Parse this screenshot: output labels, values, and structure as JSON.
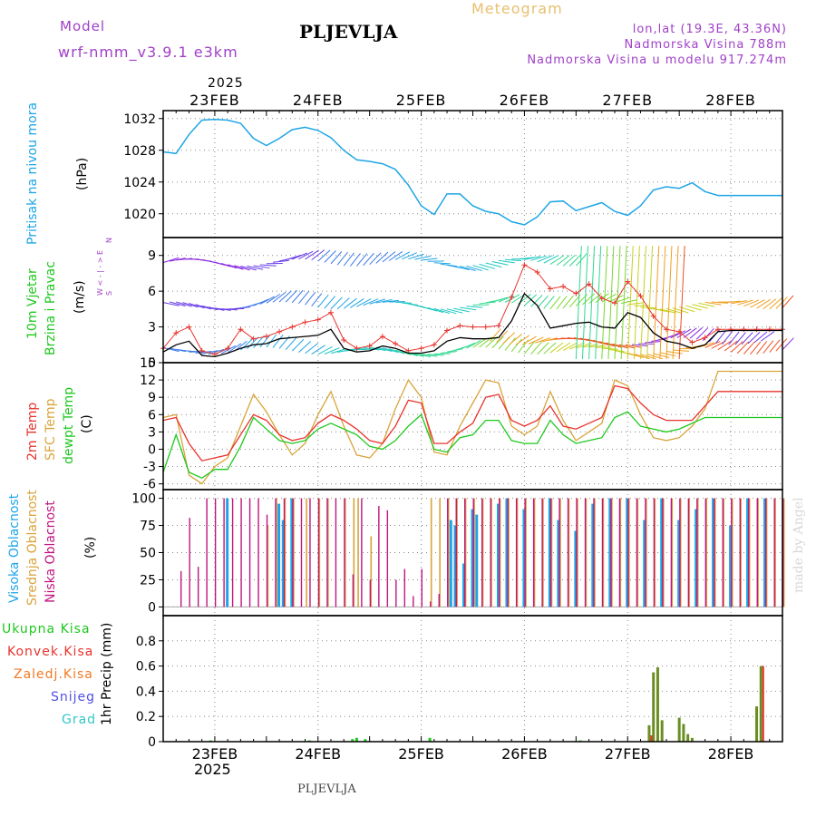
{
  "header": {
    "model_label": "Model",
    "model_name": "wrf-nmm_v3.9.1  e3km",
    "title": "PLJEVLJA",
    "meteogram_label": "Meteogram",
    "lonlat": "lon,lat (19.3E, 43.36N)",
    "altitude": "Nadmorska Visina 788m",
    "model_altitude": "Nadmorska Visina u modelu 917.274m",
    "year_top": "2025",
    "year_bottom": "2025",
    "bottom_label": "PLJEVLJA",
    "watermark": "made by Angel"
  },
  "colors": {
    "pressure": "#1ea5e6",
    "temp2m": "#e8332d",
    "sfc": "#d9a43a",
    "dewpt": "#1ec81e",
    "high_cloud": "#1ea5e6",
    "mid_cloud": "#d9a43a",
    "low_cloud": "#c0147f",
    "total": "#1ec81e",
    "conv": "#e8332d",
    "frozen": "#f07a26",
    "snow": "#5050e6",
    "grad": "#32c8c8",
    "wind_line": "#000000",
    "gust": "#e8332d",
    "title_purple": "#a040c8"
  },
  "chart_data": [
    {
      "panel": "pressure",
      "type": "line",
      "ylabel_title": "Pritisak na nivou mora",
      "ylabel_unit": "(hPa)",
      "ylim": [
        1017,
        1033
      ],
      "yticks": [
        "1020",
        "1024",
        "1028",
        "1032"
      ],
      "series": [
        {
          "name": "MSLP",
          "x": [
            0,
            3,
            6,
            9,
            12,
            15,
            18,
            21,
            24,
            27,
            30,
            33,
            36,
            39,
            42,
            45,
            48,
            51,
            54,
            57,
            60,
            63,
            66,
            69,
            72,
            75,
            78,
            81,
            84,
            87,
            90,
            93,
            96,
            99,
            102,
            105,
            108,
            111,
            114,
            117,
            120,
            123,
            126,
            129,
            132,
            135,
            138,
            141,
            144
          ],
          "values": [
            1027.8,
            1027.6,
            1030.0,
            1031.8,
            1031.9,
            1031.8,
            1031.4,
            1029.5,
            1028.6,
            1029.5,
            1030.6,
            1030.9,
            1030.5,
            1029.6,
            1028.0,
            1026.8,
            1026.6,
            1026.3,
            1025.6,
            1023.6,
            1021.0,
            1019.9,
            1022.5,
            1022.5,
            1021.0,
            1020.3,
            1020.0,
            1019.0,
            1018.6,
            1019.6,
            1021.5,
            1021.6,
            1020.4,
            1020.9,
            1021.4,
            1020.3,
            1019.8,
            1021.0,
            1023.0,
            1023.4,
            1023.2,
            1023.9,
            1022.8,
            1022.3,
            1022.3,
            1022.3,
            1022.3,
            1022.3,
            1022.3
          ]
        }
      ]
    },
    {
      "panel": "wind",
      "type": "line",
      "ylabel_title": "10m Vjetar",
      "ylabel_title2": "Brzina i Pravac",
      "ylabel_unit": "(m/s)",
      "legend_compass": [
        "N",
        "W  < - | - >  E",
        "S"
      ],
      "ylim": [
        0,
        10.5
      ],
      "yticks": [
        "0",
        "3",
        "6",
        "9"
      ],
      "series": [
        {
          "name": "speed",
          "x": [
            0,
            3,
            6,
            9,
            12,
            15,
            18,
            21,
            24,
            27,
            30,
            33,
            36,
            39,
            42,
            45,
            48,
            51,
            54,
            57,
            60,
            63,
            66,
            69,
            72,
            75,
            78,
            81,
            84,
            87,
            90,
            93,
            96,
            99,
            102,
            105,
            108,
            111,
            114,
            117,
            120,
            123,
            126,
            129,
            132,
            135,
            138,
            141,
            144
          ],
          "values": [
            0.9,
            1.5,
            1.8,
            0.6,
            0.5,
            0.8,
            1.2,
            1.5,
            1.6,
            2.0,
            2.1,
            2.2,
            2.3,
            2.8,
            1.2,
            0.9,
            1.0,
            1.4,
            1.2,
            0.8,
            0.8,
            1.0,
            1.8,
            2.1,
            2.0,
            2.0,
            2.1,
            3.5,
            5.8,
            4.8,
            2.9,
            3.1,
            3.3,
            3.4,
            3.0,
            2.9,
            4.2,
            3.8,
            2.5,
            1.8,
            1.6,
            1.2,
            1.5,
            2.6,
            2.7,
            2.7,
            2.7,
            2.7,
            2.7
          ]
        },
        {
          "name": "gust",
          "x": [
            0,
            3,
            6,
            9,
            12,
            15,
            18,
            21,
            24,
            27,
            30,
            33,
            36,
            39,
            42,
            45,
            48,
            51,
            54,
            57,
            60,
            63,
            66,
            69,
            72,
            75,
            78,
            81,
            84,
            87,
            90,
            93,
            96,
            99,
            102,
            105,
            108,
            111,
            114,
            117,
            120,
            123,
            126,
            129,
            132,
            135,
            138,
            141,
            144
          ],
          "values": [
            1.2,
            2.5,
            3.0,
            1.0,
            0.7,
            1.2,
            2.8,
            2.0,
            2.2,
            2.6,
            3.0,
            3.4,
            3.6,
            4.2,
            1.9,
            1.2,
            1.4,
            2.2,
            1.6,
            1.0,
            1.2,
            1.5,
            2.7,
            3.1,
            3.0,
            3.0,
            3.1,
            5.5,
            8.2,
            7.6,
            6.2,
            6.4,
            5.8,
            6.6,
            5.4,
            5.0,
            6.8,
            5.6,
            3.9,
            2.8,
            2.6,
            1.7,
            2.1,
            2.8,
            2.8,
            2.8,
            2.8,
            2.8,
            2.8
          ]
        }
      ]
    },
    {
      "panel": "temperature",
      "type": "line",
      "ylabel_title": "2m Temp",
      "ylabel_title2": "SFC Temp",
      "ylabel_title3": "dewpt Temp",
      "ylabel_unit": "(C)",
      "ylim": [
        -7,
        15
      ],
      "yticks": [
        "-6",
        "-3",
        "0",
        "3",
        "6",
        "9",
        "12",
        "15"
      ],
      "x": [
        0,
        3,
        6,
        9,
        12,
        15,
        18,
        21,
        24,
        27,
        30,
        33,
        36,
        39,
        42,
        45,
        48,
        51,
        54,
        57,
        60,
        63,
        66,
        69,
        72,
        75,
        78,
        81,
        84,
        87,
        90,
        93,
        96,
        99,
        102,
        105,
        108,
        111,
        114,
        117,
        120,
        123,
        126,
        129,
        132,
        135,
        138,
        141,
        144
      ],
      "series": [
        {
          "name": "2m",
          "values": [
            5.0,
            5.5,
            1.0,
            -2.0,
            -1.5,
            -1.0,
            2.5,
            6.0,
            5.0,
            2.5,
            1.5,
            2.0,
            4.5,
            6.0,
            5.0,
            3.5,
            1.5,
            1.0,
            4.0,
            8.5,
            8.0,
            1.0,
            1.0,
            3.0,
            4.5,
            9.0,
            9.5,
            5.0,
            4.0,
            5.0,
            7.5,
            4.0,
            3.5,
            4.5,
            5.5,
            11.0,
            10.5,
            8.0,
            6.0,
            5.0,
            5.0,
            5.0,
            7.5,
            10.0,
            10.0,
            10.0,
            10.0,
            10.0,
            10.0
          ]
        },
        {
          "name": "sfc",
          "values": [
            5.5,
            6.0,
            -4.5,
            -6.0,
            -3.0,
            -1.5,
            4.0,
            9.5,
            6.5,
            2.5,
            -1.0,
            1.0,
            6.0,
            10.0,
            4.0,
            -1.0,
            -1.5,
            1.0,
            7.0,
            12.0,
            9.0,
            -0.5,
            -1.0,
            4.0,
            8.0,
            12.0,
            11.5,
            4.0,
            2.5,
            4.0,
            10.0,
            5.0,
            1.5,
            3.0,
            4.5,
            12.0,
            11.0,
            6.0,
            2.0,
            1.5,
            2.0,
            4.0,
            7.0,
            13.5,
            13.5,
            13.5,
            13.5,
            13.5,
            13.5
          ]
        },
        {
          "name": "dewpt",
          "values": [
            -4.0,
            2.5,
            -4.0,
            -5.0,
            -3.5,
            -3.5,
            0.5,
            5.5,
            3.5,
            1.5,
            1.0,
            1.5,
            3.5,
            4.5,
            3.5,
            2.5,
            0.5,
            0.0,
            1.5,
            4.0,
            6.0,
            0.0,
            -0.5,
            2.0,
            2.5,
            5.0,
            5.0,
            1.5,
            1.0,
            1.0,
            5.0,
            2.5,
            1.0,
            1.5,
            2.0,
            5.5,
            6.5,
            4.0,
            3.5,
            3.0,
            3.5,
            4.5,
            5.5,
            5.5,
            5.5,
            5.5,
            5.5,
            5.5,
            5.5
          ]
        }
      ]
    },
    {
      "panel": "clouds",
      "type": "bar",
      "ylabel_title": "Visoka Oblacnost",
      "ylabel_title2": "Srednja Oblacnost",
      "ylabel_title3": "Niska Oblacnost",
      "ylabel_unit": "(%)",
      "ylim": [
        -8,
        108
      ],
      "yticks": [
        "0",
        "25",
        "50",
        "75",
        "100"
      ],
      "series": [
        {
          "name": "high",
          "x": [
            15,
            27,
            28,
            30,
            67,
            68,
            70,
            72,
            73,
            78,
            80,
            84,
            90,
            92,
            96,
            100,
            104,
            108,
            112,
            116,
            120,
            124,
            128,
            132,
            136,
            140
          ],
          "values": [
            100,
            95,
            80,
            100,
            80,
            75,
            40,
            90,
            85,
            95,
            100,
            90,
            100,
            80,
            70,
            95,
            100,
            100,
            80,
            100,
            80,
            90,
            100,
            75,
            100,
            100
          ]
        },
        {
          "name": "mid",
          "x": [
            24,
            26,
            28,
            30,
            33,
            36,
            38,
            42,
            44,
            45,
            48,
            62,
            64,
            66,
            68,
            70,
            72,
            74,
            76,
            78,
            80,
            82,
            84,
            86,
            88,
            90,
            92,
            94,
            96,
            98,
            100,
            102,
            104,
            106,
            108,
            110,
            112,
            114,
            116,
            118,
            120,
            122,
            124,
            126,
            128,
            130,
            132,
            134,
            136,
            138,
            140,
            142,
            144
          ],
          "values": [
            75,
            100,
            100,
            100,
            100,
            100,
            100,
            100,
            100,
            100,
            65,
            100,
            100,
            100,
            100,
            100,
            100,
            100,
            100,
            100,
            100,
            100,
            100,
            100,
            100,
            100,
            100,
            100,
            100,
            100,
            100,
            100,
            100,
            100,
            100,
            100,
            100,
            100,
            100,
            100,
            100,
            100,
            100,
            100,
            100,
            100,
            100,
            100,
            100,
            100,
            100,
            100,
            100
          ]
        },
        {
          "name": "low",
          "x": [
            4,
            6,
            8,
            10,
            12,
            14,
            16,
            18,
            20,
            22,
            24,
            26,
            28,
            30,
            32,
            34,
            36,
            38,
            40,
            42,
            44,
            46,
            48,
            50,
            52,
            54,
            56,
            58,
            60,
            62,
            64,
            66,
            68,
            70,
            72,
            74,
            76,
            78,
            80,
            82,
            84,
            86,
            88,
            90,
            92,
            94,
            96,
            98,
            100,
            102,
            104,
            106,
            108,
            110,
            112,
            114,
            116,
            118,
            120,
            122,
            124,
            126,
            128,
            130,
            132,
            134,
            136,
            138,
            140,
            142,
            144
          ],
          "values": [
            33,
            82,
            37,
            100,
            100,
            100,
            100,
            100,
            100,
            100,
            85,
            100,
            100,
            100,
            100,
            100,
            100,
            100,
            100,
            100,
            30,
            100,
            25,
            93,
            89,
            25,
            35,
            10,
            35,
            5,
            12,
            100,
            100,
            100,
            100,
            100,
            100,
            100,
            100,
            100,
            100,
            100,
            100,
            100,
            100,
            100,
            100,
            100,
            100,
            100,
            100,
            100,
            100,
            100,
            100,
            100,
            100,
            100,
            100,
            100,
            100,
            100,
            100,
            100,
            100,
            100,
            100,
            100,
            100,
            100,
            100
          ]
        }
      ]
    },
    {
      "panel": "precipitation",
      "type": "bar",
      "ylabel_title": "1hr Precip (mm)",
      "legend": [
        "Ukupna  Kisa",
        "Konvek.Kisa",
        "Zaledj.Kisa",
        "Snijeg",
        "Grad"
      ],
      "ylim": [
        0,
        1.0
      ],
      "yticks": [
        "0",
        "0.2",
        "0.4",
        "0.6",
        "0.8"
      ],
      "series": [
        {
          "name": "total",
          "x": [
            11,
            34,
            44,
            45,
            47,
            62,
            97,
            113,
            114,
            115,
            116,
            120,
            121,
            122,
            123,
            138,
            139
          ],
          "values": [
            0.01,
            0.01,
            0.02,
            0.03,
            0.02,
            0.03,
            0.01,
            0.13,
            0.55,
            0.59,
            0.17,
            0.19,
            0.14,
            0.06,
            0.03,
            0.28,
            0.6
          ]
        },
        {
          "name": "conv",
          "x": [
            113,
            139
          ],
          "values": [
            0.05,
            0.6
          ]
        }
      ]
    }
  ],
  "x_axis": {
    "hours": 144,
    "day_labels": [
      "23FEB",
      "24FEB",
      "25FEB",
      "26FEB",
      "27FEB",
      "28FEB"
    ],
    "day_label_hours": [
      12,
      36,
      60,
      84,
      108,
      132
    ]
  }
}
